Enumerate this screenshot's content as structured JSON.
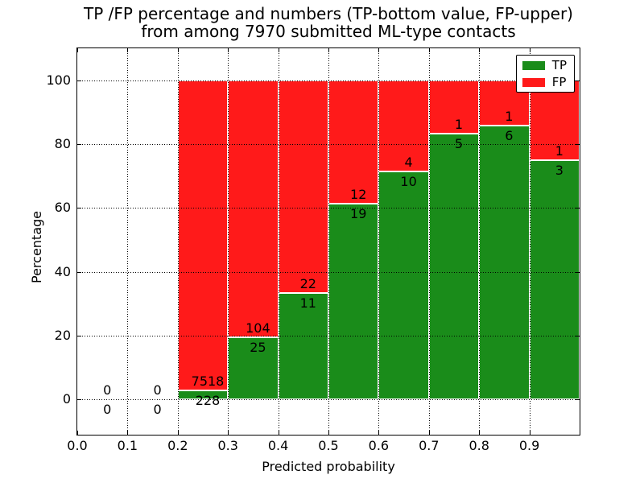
{
  "title": {
    "line1": "TP /FP percentage and numbers (TP-bottom value, FP-upper)",
    "line2": "from among 7970 submitted ML-type contacts"
  },
  "axes": {
    "xlabel": "Predicted probability",
    "ylabel": "Percentage",
    "xlim": [
      0.0,
      1.0
    ],
    "ylim": [
      -11,
      110
    ],
    "x_ticks": [
      0.0,
      0.1,
      0.2,
      0.3,
      0.4,
      0.5,
      0.6,
      0.7,
      0.8,
      0.9
    ],
    "x_tick_labels": [
      "0.0",
      "0.1",
      "0.2",
      "0.3",
      "0.4",
      "0.5",
      "0.6",
      "0.7",
      "0.8",
      "0.9"
    ],
    "y_ticks": [
      0,
      20,
      40,
      60,
      80,
      100
    ],
    "y_tick_labels": [
      "0",
      "20",
      "40",
      "60",
      "80",
      "100"
    ],
    "grid_style": "dotted"
  },
  "legend": {
    "position": "upper right",
    "items": [
      {
        "label": "TP",
        "color": "#1a8c1a"
      },
      {
        "label": "FP",
        "color": "#ff1a1a"
      }
    ]
  },
  "chart_data": {
    "type": "bar",
    "stacked": true,
    "title": "TP /FP percentage and numbers (TP-bottom value, FP-upper) from among 7970 submitted ML-type contacts",
    "xlabel": "Predicted probability",
    "ylabel": "Percentage",
    "xlim": [
      0.0,
      1.0
    ],
    "ylim": [
      -11,
      110
    ],
    "grid": "dotted",
    "legend_position": "upper right",
    "series": [
      {
        "name": "TP",
        "color": "#1a8c1a"
      },
      {
        "name": "FP",
        "color": "#ff1a1a"
      }
    ],
    "bins": [
      {
        "range": [
          0.0,
          0.1
        ],
        "tp": 0,
        "fp": 0,
        "tp_pct": 0,
        "fp_pct": 0
      },
      {
        "range": [
          0.1,
          0.2
        ],
        "tp": 0,
        "fp": 0,
        "tp_pct": 0,
        "fp_pct": 0
      },
      {
        "range": [
          0.2,
          0.3
        ],
        "tp": 228,
        "fp": 7518,
        "tp_pct": 2.94,
        "fp_pct": 97.06
      },
      {
        "range": [
          0.3,
          0.4
        ],
        "tp": 25,
        "fp": 104,
        "tp_pct": 19.38,
        "fp_pct": 80.62
      },
      {
        "range": [
          0.4,
          0.5
        ],
        "tp": 11,
        "fp": 22,
        "tp_pct": 33.33,
        "fp_pct": 66.67
      },
      {
        "range": [
          0.5,
          0.6
        ],
        "tp": 19,
        "fp": 12,
        "tp_pct": 61.29,
        "fp_pct": 38.71
      },
      {
        "range": [
          0.6,
          0.7
        ],
        "tp": 10,
        "fp": 4,
        "tp_pct": 71.43,
        "fp_pct": 28.57
      },
      {
        "range": [
          0.7,
          0.8
        ],
        "tp": 5,
        "fp": 1,
        "tp_pct": 83.33,
        "fp_pct": 16.67
      },
      {
        "range": [
          0.8,
          0.9
        ],
        "tp": 6,
        "fp": 1,
        "tp_pct": 85.71,
        "fp_pct": 14.29
      },
      {
        "range": [
          0.9,
          1.0
        ],
        "tp": 3,
        "fp": 1,
        "tp_pct": 75.0,
        "fp_pct": 25.0
      }
    ]
  }
}
